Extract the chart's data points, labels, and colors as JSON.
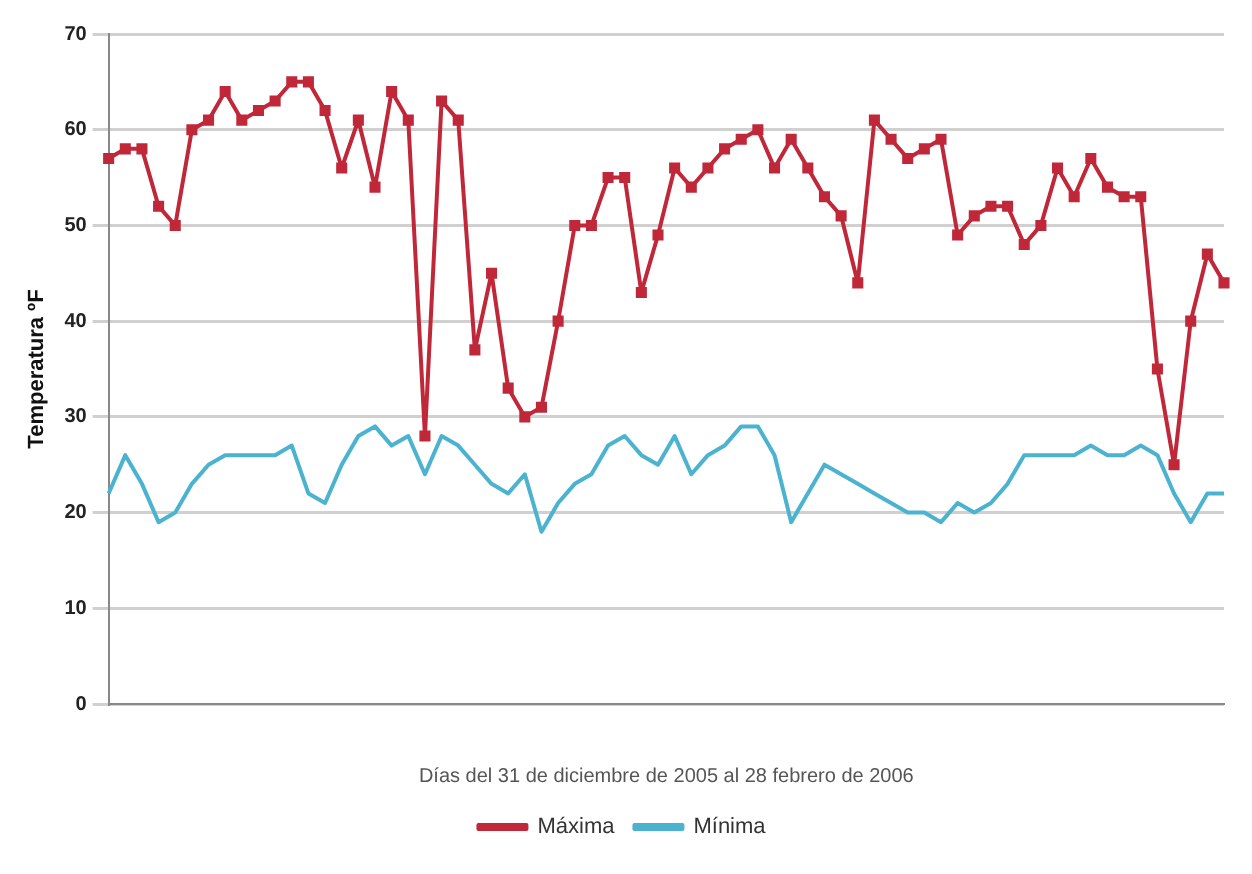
{
  "chart_data": {
    "type": "line",
    "xlabel": "Días del 31 de diciembre de 2005 al 28 febrero de 2006",
    "ylabel": "Temperatura ºF",
    "categories": [
      null,
      null,
      null,
      null,
      null,
      null,
      null,
      null,
      null,
      null,
      null,
      null,
      null,
      null,
      null,
      null,
      null,
      null,
      null,
      null,
      null,
      null,
      null,
      null,
      null,
      null,
      null,
      null,
      null,
      null,
      null,
      null,
      null,
      null,
      null,
      null,
      null,
      null,
      null,
      null,
      null,
      null,
      null,
      null,
      null,
      null,
      null,
      null,
      null,
      null,
      null,
      null,
      null,
      null,
      null,
      null,
      null,
      null,
      null,
      null,
      null,
      null,
      null,
      null,
      null,
      null,
      null,
      null
    ],
    "series": [
      {
        "name": "Máxima",
        "color": "#c0283a",
        "marker": "square",
        "values": [
          57,
          58,
          58,
          52,
          50,
          60,
          61,
          64,
          61,
          62,
          63,
          65,
          65,
          62,
          56,
          61,
          54,
          64,
          61,
          28,
          63,
          61,
          37,
          45,
          33,
          30,
          31,
          40,
          50,
          50,
          55,
          55,
          43,
          49,
          56,
          54,
          56,
          58,
          59,
          60,
          56,
          59,
          56,
          53,
          51,
          44,
          61,
          59,
          57,
          58,
          59,
          49,
          51,
          52,
          52,
          48,
          50,
          56,
          53,
          57,
          54,
          53,
          53,
          35,
          25,
          40,
          47,
          44
        ]
      },
      {
        "name": "Mínima",
        "color": "#4bb3cf",
        "marker": "none",
        "values": [
          22,
          26,
          23,
          19,
          20,
          23,
          25,
          26,
          26,
          26,
          26,
          27,
          22,
          21,
          25,
          28,
          29,
          27,
          28,
          24,
          28,
          27,
          25,
          23,
          22,
          24,
          18,
          21,
          23,
          24,
          27,
          28,
          26,
          25,
          28,
          24,
          26,
          27,
          29,
          29,
          26,
          19,
          22,
          25,
          24,
          23,
          22,
          21,
          20,
          20,
          19,
          21,
          20,
          21,
          23,
          26,
          26,
          26,
          26,
          27,
          26,
          26,
          27,
          26,
          22,
          19,
          22,
          22
        ]
      }
    ],
    "ylim": [
      0,
      70
    ],
    "yticks": [
      0,
      10,
      20,
      30,
      40,
      50,
      60,
      70
    ],
    "grid": "y",
    "legend": "bottom",
    "line_style": "solid"
  }
}
